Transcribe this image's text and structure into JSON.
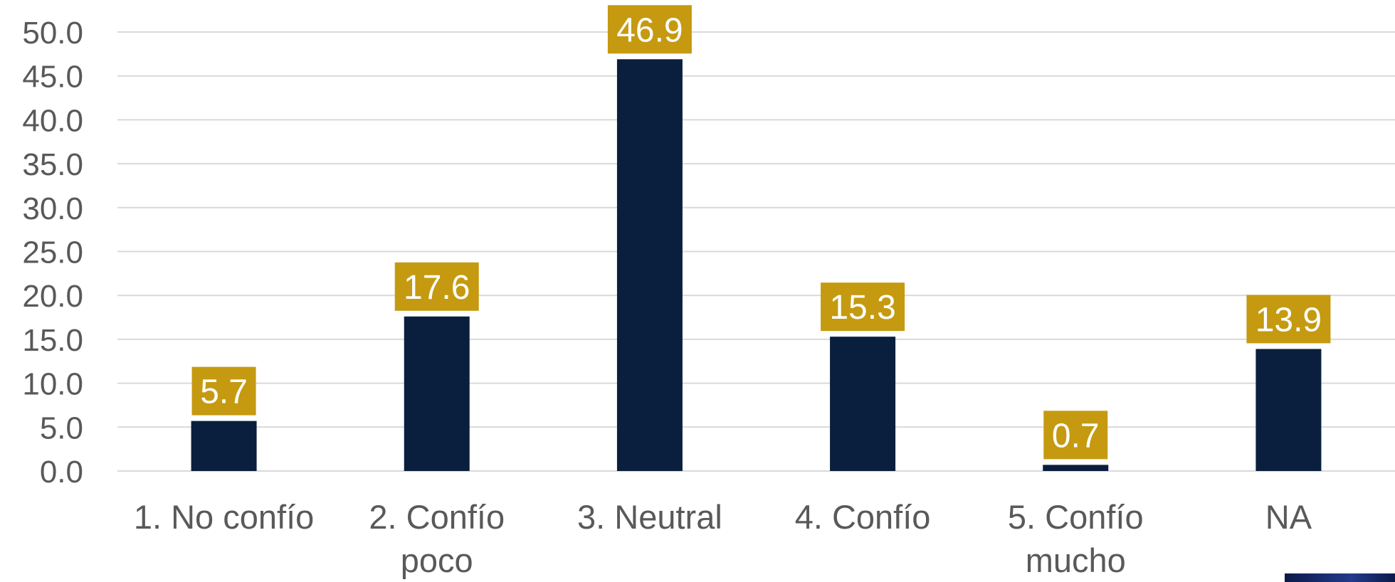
{
  "chart_data": {
    "type": "bar",
    "categories": [
      "1. No confío",
      "2. Confío poco",
      "3. Neutral",
      "4. Confío",
      "5. Confío mucho",
      "NA"
    ],
    "category_lines": [
      [
        "1. No confío"
      ],
      [
        "2. Confío",
        "poco"
      ],
      [
        "3. Neutral"
      ],
      [
        "4. Confío"
      ],
      [
        "5. Confío",
        "mucho"
      ],
      [
        "NA"
      ]
    ],
    "values": [
      5.7,
      17.6,
      46.9,
      15.3,
      0.7,
      13.9
    ],
    "data_labels": [
      "5.7",
      "17.6",
      "46.9",
      "15.3",
      "0.7",
      "13.9"
    ],
    "y_ticks": [
      "0.0",
      "5.0",
      "10.0",
      "15.0",
      "20.0",
      "25.0",
      "30.0",
      "35.0",
      "40.0",
      "45.0",
      "50.0"
    ],
    "ylim": [
      0,
      50
    ],
    "grid": true,
    "legend": "none",
    "colors": {
      "bar": "#0a1f3d",
      "label_bg": "#c59a10",
      "label_text": "#ffffff",
      "axis_text": "#595959",
      "grid": "#d9d9d9"
    }
  }
}
